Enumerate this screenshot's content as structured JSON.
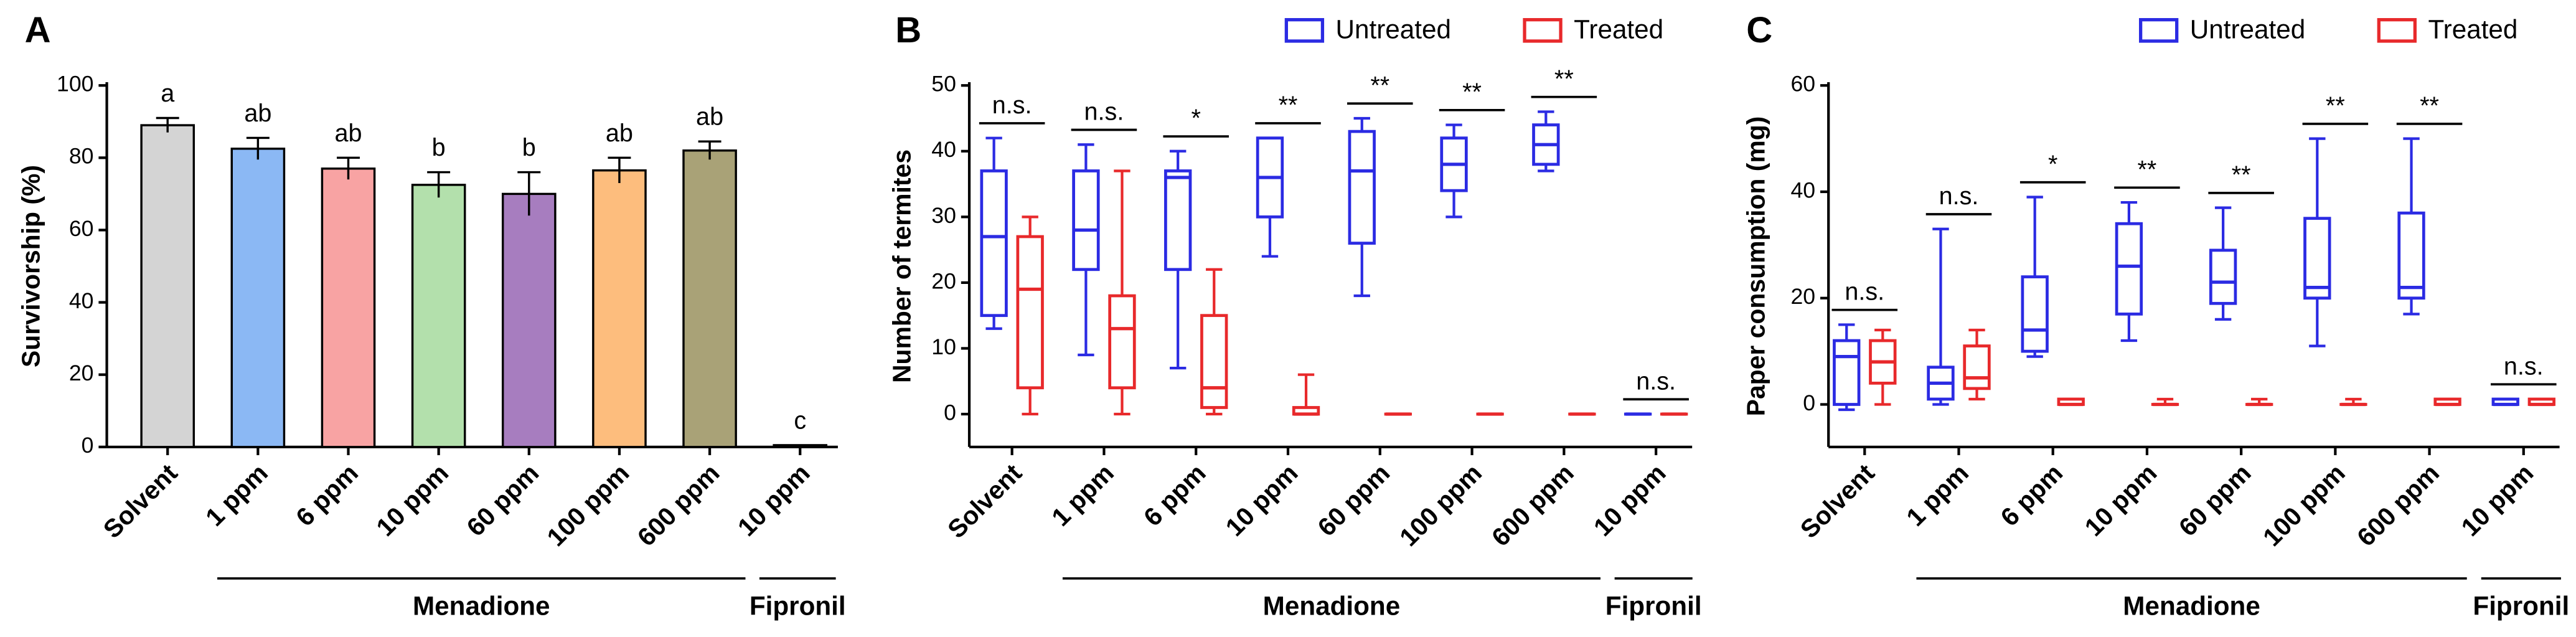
{
  "chart_data": [
    {
      "type": "bar",
      "panel": "A",
      "ylabel": "Survivorship (%)",
      "categories": [
        "Solvent",
        "1 ppm",
        "6 ppm",
        "10 ppm",
        "60 ppm",
        "100 ppm",
        "600 ppm",
        "10 ppm"
      ],
      "values": [
        89,
        82.5,
        77,
        72.5,
        70,
        76.5,
        82,
        0.5
      ],
      "errors": [
        2,
        3,
        3,
        3.5,
        6,
        3.5,
        2.5,
        0
      ],
      "colors": [
        "#d4d4d4",
        "#8bb8f4",
        "#f8a3a3",
        "#b3e0ac",
        "#a77dbf",
        "#fdbd7d",
        "#a9a277",
        "#d4d4d4"
      ],
      "letters": [
        "a",
        "ab",
        "ab",
        "b",
        "b",
        "ab",
        "ab",
        "c"
      ],
      "ylim": [
        0,
        100
      ],
      "yticks": [
        0,
        20,
        40,
        60,
        80,
        100
      ],
      "category_groups": [
        {
          "label": "Menadione",
          "span": [
            1,
            6
          ]
        },
        {
          "label": "Fipronil",
          "span": [
            7,
            7
          ]
        }
      ]
    },
    {
      "type": "box",
      "panel": "B",
      "ylabel": "Number of termites",
      "categories": [
        "Solvent",
        "1 ppm",
        "6 ppm",
        "10 ppm",
        "60 ppm",
        "100 ppm",
        "600 ppm",
        "10 ppm"
      ],
      "series": [
        {
          "name": "Untreated",
          "color": "#2b2be3",
          "min": [
            13,
            9,
            7,
            24,
            18,
            30,
            37,
            0
          ],
          "q1": [
            15,
            22,
            22,
            30,
            26,
            34,
            38,
            0
          ],
          "median": [
            27,
            28,
            36,
            36,
            37,
            38,
            41,
            0
          ],
          "q3": [
            37,
            37,
            37,
            42,
            43,
            42,
            44,
            0
          ],
          "max": [
            42,
            41,
            40,
            42,
            45,
            44,
            46,
            0
          ]
        },
        {
          "name": "Treated",
          "color": "#e8292b",
          "min": [
            0,
            0,
            0,
            0,
            0,
            0,
            0,
            0
          ],
          "q1": [
            4,
            4,
            1,
            0,
            0,
            0,
            0,
            0
          ],
          "median": [
            19,
            13,
            4,
            0,
            0,
            0,
            0,
            0
          ],
          "q3": [
            27,
            18,
            15,
            1,
            0,
            0,
            0,
            0
          ],
          "max": [
            30,
            37,
            22,
            6,
            0,
            0,
            0,
            0
          ]
        }
      ],
      "significance": [
        "n.s.",
        "n.s.",
        "*",
        "**",
        "**",
        "**",
        "**",
        "n.s."
      ],
      "ylim": [
        -5,
        50
      ],
      "yticks": [
        0,
        10,
        20,
        30,
        40,
        50
      ],
      "legend": "top-right",
      "category_groups": [
        {
          "label": "Menadione",
          "span": [
            1,
            6
          ]
        },
        {
          "label": "Fipronil",
          "span": [
            7,
            7
          ]
        }
      ]
    },
    {
      "type": "box",
      "panel": "C",
      "ylabel": "Paper consumption (mg)",
      "categories": [
        "Solvent",
        "1 ppm",
        "6 ppm",
        "10 ppm",
        "60 ppm",
        "100 ppm",
        "600 ppm",
        "10 ppm"
      ],
      "series": [
        {
          "name": "Untreated",
          "color": "#2b2be3",
          "min": [
            -1,
            0,
            9,
            12,
            16,
            11,
            17,
            0
          ],
          "q1": [
            0,
            1,
            10,
            17,
            19,
            20,
            20,
            0
          ],
          "median": [
            9,
            4,
            14,
            26,
            23,
            22,
            22,
            0
          ],
          "q3": [
            12,
            7,
            24,
            34,
            29,
            35,
            36,
            1
          ],
          "max": [
            15,
            33,
            39,
            38,
            37,
            50,
            50,
            1
          ]
        },
        {
          "name": "Treated",
          "color": "#e8292b",
          "min": [
            0,
            1,
            0,
            0,
            0,
            0,
            0,
            0
          ],
          "q1": [
            4,
            3,
            0,
            0,
            0,
            0,
            0,
            0
          ],
          "median": [
            8,
            5,
            0,
            0,
            0,
            0,
            0,
            0
          ],
          "q3": [
            12,
            11,
            1,
            0,
            0,
            0,
            1,
            1
          ],
          "max": [
            14,
            14,
            1,
            1,
            1,
            1,
            1,
            1
          ]
        }
      ],
      "significance": [
        "n.s.",
        "n.s.",
        "*",
        "**",
        "**",
        "**",
        "**",
        "n.s."
      ],
      "ylim": [
        -8,
        60
      ],
      "yticks": [
        0,
        20,
        40,
        60
      ],
      "legend": "top-right",
      "category_groups": [
        {
          "label": "Menadione",
          "span": [
            1,
            6
          ]
        },
        {
          "label": "Fipronil",
          "span": [
            7,
            7
          ]
        }
      ]
    }
  ]
}
